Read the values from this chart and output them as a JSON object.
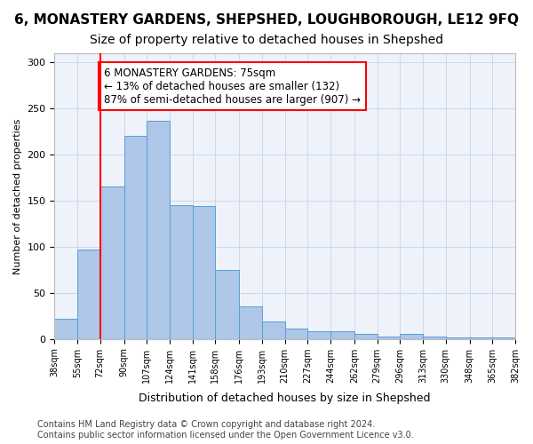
{
  "title": "6, MONASTERY GARDENS, SHEPSHED, LOUGHBOROUGH, LE12 9FQ",
  "subtitle": "Size of property relative to detached houses in Shepshed",
  "xlabel": "Distribution of detached houses by size in Shepshed",
  "ylabel": "Number of detached properties",
  "bar_edges": [
    38,
    55,
    72,
    90,
    107,
    124,
    141,
    158,
    176,
    193,
    210,
    227,
    244,
    262,
    279,
    296,
    313,
    330,
    348,
    365,
    382
  ],
  "bar_heights": [
    22,
    97,
    165,
    220,
    237,
    145,
    144,
    75,
    35,
    19,
    11,
    8,
    8,
    5,
    3,
    5,
    3,
    2,
    2,
    2
  ],
  "bar_color": "#aec6e8",
  "bar_edge_color": "#5a9fd4",
  "red_line_x": 72,
  "annotation_text": "6 MONASTERY GARDENS: 75sqm\n← 13% of detached houses are smaller (132)\n87% of semi-detached houses are larger (907) →",
  "annotation_box_color": "white",
  "annotation_box_edge_color": "red",
  "ylim": [
    0,
    310
  ],
  "yticks": [
    0,
    50,
    100,
    150,
    200,
    250,
    300
  ],
  "tick_labels": [
    "38sqm",
    "55sqm",
    "72sqm",
    "90sqm",
    "107sqm",
    "124sqm",
    "141sqm",
    "158sqm",
    "176sqm",
    "193sqm",
    "210sqm",
    "227sqm",
    "244sqm",
    "262sqm",
    "279sqm",
    "296sqm",
    "313sqm",
    "330sqm",
    "348sqm",
    "365sqm",
    "382sqm"
  ],
  "grid_color": "#d0d8e8",
  "background_color": "#eef2fa",
  "footer_text": "Contains HM Land Registry data © Crown copyright and database right 2024.\nContains public sector information licensed under the Open Government Licence v3.0.",
  "title_fontsize": 11,
  "subtitle_fontsize": 10,
  "annotation_fontsize": 8.5,
  "footer_fontsize": 7
}
